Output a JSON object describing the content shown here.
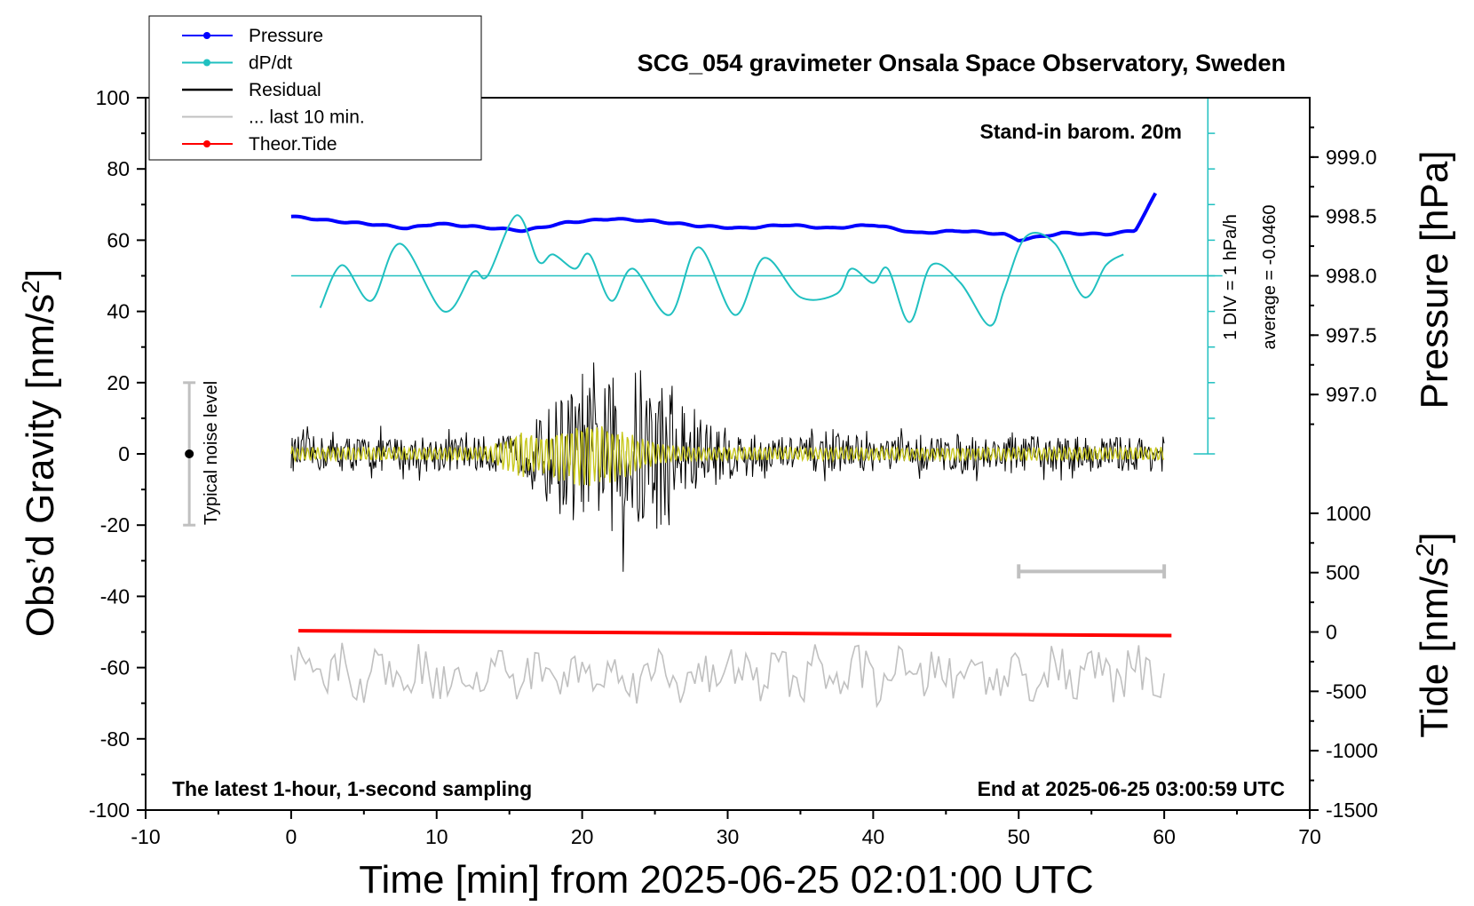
{
  "chart_data": {
    "type": "line",
    "title": "SCG_054 gravimeter Onsala Space Observatory, Sweden",
    "xlabel": "Time [min] from 2025-06-25 02:01:00 UTC",
    "ylabel_left": "Obs’d Gravity [nm/s²]",
    "ylabel_left_main": "Obs’d Gravity [nm/s",
    "ylabel_left_sup": "2",
    "ylabel_left_end": "]",
    "ylabel_right_top": "Pressure [hPa]",
    "ylabel_right_bottom": "Tide [nm/s²]",
    "ylabel_right_bottom_main": "Tide [nm/s",
    "ylabel_right_bottom_sup": "2",
    "ylabel_right_bottom_end": "]",
    "xlim": [
      -10,
      70
    ],
    "ylim_left": [
      -100,
      100
    ],
    "ylim_pressure": [
      996.5,
      999.5
    ],
    "ylim_tide": [
      -1500,
      1500
    ],
    "x_ticks": [
      "-10",
      "0",
      "10",
      "20",
      "30",
      "40",
      "50",
      "60",
      "70"
    ],
    "y_ticks_left": [
      "100",
      "80",
      "60",
      "40",
      "20",
      "0",
      "-20",
      "-40",
      "-60",
      "-80",
      "-100"
    ],
    "y_ticks_pressure": [
      "999.0",
      "998.5",
      "998.0",
      "997.5",
      "997.0"
    ],
    "y_ticks_tide": [
      "1000",
      "500",
      "0",
      "-500",
      "-1000",
      "-1500"
    ],
    "annotations": {
      "barometer": "Stand-in barom. 20m",
      "latest": "The latest 1-hour, 1-second sampling",
      "end_time": "End at 2025-06-25 03:00:59 UTC",
      "scale_div": "1 DIV = 1 hPa/h",
      "average": "average = -0.0460",
      "noise": "Typical noise level"
    },
    "noise_bar": {
      "x": -7,
      "center": 0,
      "low": -20,
      "high": 20
    },
    "scale_bar": {
      "x_start": 50,
      "x_end": 60,
      "y": -33
    },
    "dpdt_baseline": 50,
    "legend": [
      {
        "label": "Pressure",
        "color": "#0000ff",
        "marker": true
      },
      {
        "label": "dP/dt",
        "color": "#20c0c0",
        "marker": true
      },
      {
        "label": "Residual",
        "color": "#000000",
        "marker": false
      },
      {
        "label": "... last 10 min.",
        "color": "#c0c0c0",
        "marker": false
      },
      {
        "label": "Theor.Tide",
        "color": "#ff0000",
        "marker": true
      }
    ],
    "series": [
      {
        "name": "Pressure",
        "axis": "pressure",
        "x": [
          0,
          3,
          6,
          8,
          10,
          13,
          16,
          19,
          22,
          25,
          28,
          31,
          34,
          37,
          40,
          43,
          46,
          49,
          50,
          53,
          56,
          58,
          59.4
        ],
        "values": [
          998.5,
          998.46,
          998.43,
          998.4,
          998.44,
          998.41,
          998.38,
          998.45,
          998.48,
          998.46,
          998.42,
          998.4,
          998.43,
          998.4,
          998.43,
          998.36,
          998.38,
          998.35,
          998.3,
          998.36,
          998.35,
          998.38,
          998.69
        ]
      },
      {
        "name": "dP/dt",
        "axis": "left",
        "x": [
          2,
          3.5,
          5.5,
          7.5,
          10.5,
          12.5,
          13.5,
          15.5,
          17,
          18,
          19.5,
          20.5,
          22,
          23.5,
          26,
          28,
          30.5,
          32.5,
          35,
          37.5,
          38.5,
          40,
          41,
          42.5,
          44,
          46,
          48,
          49,
          50.5,
          52.5,
          54.5,
          56,
          57.2
        ],
        "values": [
          41,
          53,
          43,
          59,
          40,
          51,
          50,
          67,
          54,
          56,
          52,
          56,
          43,
          52,
          39,
          58,
          39,
          55,
          44,
          45,
          52,
          48,
          52,
          37,
          53,
          48,
          36,
          46,
          61,
          59,
          44,
          53,
          56
        ]
      },
      {
        "name": "Theor.Tide",
        "axis": "tide",
        "x": [
          0.5,
          60.5
        ],
        "values": [
          10,
          -30
        ]
      }
    ]
  }
}
